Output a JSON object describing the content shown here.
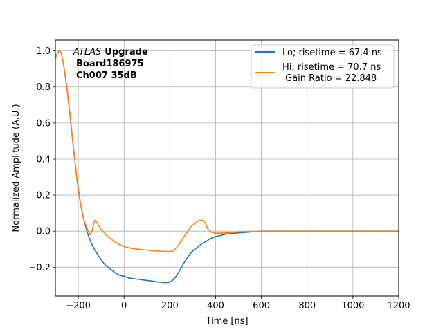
{
  "chart_data": {
    "type": "line",
    "title": "",
    "xlabel": "Time [ns]",
    "ylabel": "Normalized Amplitude (A.U.)",
    "xlim": [
      -300,
      1200
    ],
    "ylim": [
      -0.36,
      1.06
    ],
    "xticks": [
      -200,
      0,
      200,
      400,
      600,
      800,
      1000,
      1200
    ],
    "yticks": [
      -0.2,
      0.0,
      0.2,
      0.4,
      0.6,
      0.8,
      1.0
    ],
    "xtick_labels": [
      "−200",
      "0",
      "200",
      "400",
      "600",
      "800",
      "1000",
      "1200"
    ],
    "ytick_labels": [
      "−0.2",
      "0.0",
      "0.2",
      "0.4",
      "0.6",
      "0.8",
      "1.0"
    ],
    "grid": true,
    "legend_position": "top-right",
    "annotation": {
      "lines": [
        {
          "italic": "ATLAS",
          "bold": "Upgrade"
        },
        {
          "bold": "Board186975"
        },
        {
          "bold": "Ch007 35dB"
        }
      ]
    },
    "series": [
      {
        "name": "Lo; risetime = 67.4 ns",
        "color": "#1f77b4",
        "x": [
          -300,
          -290,
          -283,
          -275,
          -265,
          -250,
          -235,
          -220,
          -205,
          -190,
          -175,
          -160,
          -145,
          -130,
          -115,
          -100,
          -80,
          -60,
          -40,
          -20,
          0,
          20,
          50,
          80,
          110,
          140,
          170,
          195,
          210,
          225,
          240,
          260,
          280,
          300,
          320,
          340,
          360,
          380,
          400,
          420,
          450,
          500,
          550,
          600,
          700,
          800,
          900,
          1000,
          1100,
          1200
        ],
        "y": [
          0.96,
          0.99,
          1.0,
          0.99,
          0.93,
          0.8,
          0.63,
          0.45,
          0.28,
          0.15,
          0.06,
          -0.01,
          -0.06,
          -0.1,
          -0.13,
          -0.16,
          -0.19,
          -0.21,
          -0.23,
          -0.245,
          -0.25,
          -0.26,
          -0.265,
          -0.27,
          -0.275,
          -0.28,
          -0.285,
          -0.285,
          -0.275,
          -0.255,
          -0.225,
          -0.18,
          -0.14,
          -0.11,
          -0.09,
          -0.07,
          -0.055,
          -0.04,
          -0.03,
          -0.025,
          -0.015,
          -0.01,
          -0.005,
          0.0,
          0.0,
          0.0,
          0.0,
          0.0,
          0.0,
          0.0
        ]
      },
      {
        "name": "Hi; risetime = 70.7 ns\n Gain Ratio = 22.848",
        "color": "#ff7f0e",
        "x": [
          -300,
          -290,
          -283,
          -275,
          -265,
          -250,
          -235,
          -220,
          -205,
          -190,
          -175,
          -160,
          -148,
          -140,
          -135,
          -128,
          -120,
          -110,
          -100,
          -80,
          -60,
          -40,
          -20,
          0,
          30,
          60,
          100,
          140,
          180,
          200,
          215,
          230,
          250,
          270,
          290,
          310,
          330,
          345,
          355,
          365,
          380,
          400,
          450,
          500,
          600,
          700,
          800,
          900,
          1000,
          1100,
          1200
        ],
        "y": [
          0.96,
          0.99,
          1.0,
          0.99,
          0.93,
          0.8,
          0.63,
          0.45,
          0.28,
          0.15,
          0.06,
          0.01,
          -0.02,
          0.0,
          0.03,
          0.06,
          0.05,
          0.03,
          0.01,
          -0.02,
          -0.04,
          -0.06,
          -0.075,
          -0.085,
          -0.095,
          -0.1,
          -0.105,
          -0.11,
          -0.112,
          -0.113,
          -0.11,
          -0.09,
          -0.055,
          -0.015,
          0.02,
          0.045,
          0.06,
          0.06,
          0.045,
          0.015,
          -0.005,
          -0.012,
          -0.01,
          -0.005,
          0.0,
          0.0,
          0.0,
          0.0,
          0.0,
          0.0,
          0.0
        ]
      }
    ]
  }
}
